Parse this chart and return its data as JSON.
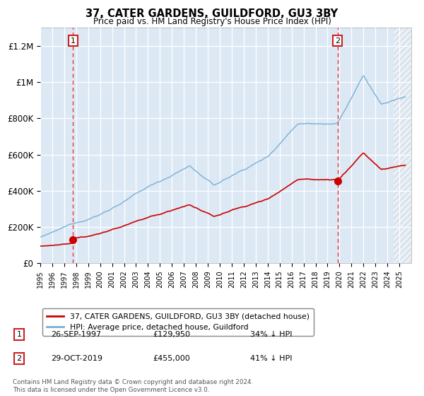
{
  "title": "37, CATER GARDENS, GUILDFORD, GU3 3BY",
  "subtitle": "Price paid vs. HM Land Registry's House Price Index (HPI)",
  "background_color": "#dce9f5",
  "ylim": [
    0,
    1300000
  ],
  "yticks": [
    0,
    200000,
    400000,
    600000,
    800000,
    1000000,
    1200000
  ],
  "ytick_labels": [
    "£0",
    "£200K",
    "£400K",
    "£600K",
    "£800K",
    "£1M",
    "£1.2M"
  ],
  "purchase1_date": 1997.74,
  "purchase1_price": 129950,
  "purchase1_label": "1",
  "purchase2_date": 2019.83,
  "purchase2_price": 455000,
  "purchase2_label": "2",
  "red_line_color": "#cc0000",
  "blue_line_color": "#7aafd4",
  "marker_color": "#cc0000",
  "dashed_line_color": "#ee3333",
  "legend_entries": [
    "37, CATER GARDENS, GUILDFORD, GU3 3BY (detached house)",
    "HPI: Average price, detached house, Guildford"
  ],
  "table_rows": [
    {
      "num": "1",
      "date": "26-SEP-1997",
      "price": "£129,950",
      "hpi": "34% ↓ HPI"
    },
    {
      "num": "2",
      "date": "29-OCT-2019",
      "price": "£455,000",
      "hpi": "41% ↓ HPI"
    }
  ],
  "footnote": "Contains HM Land Registry data © Crown copyright and database right 2024.\nThis data is licensed under the Open Government Licence v3.0.",
  "xmin": 1995,
  "xmax": 2026
}
